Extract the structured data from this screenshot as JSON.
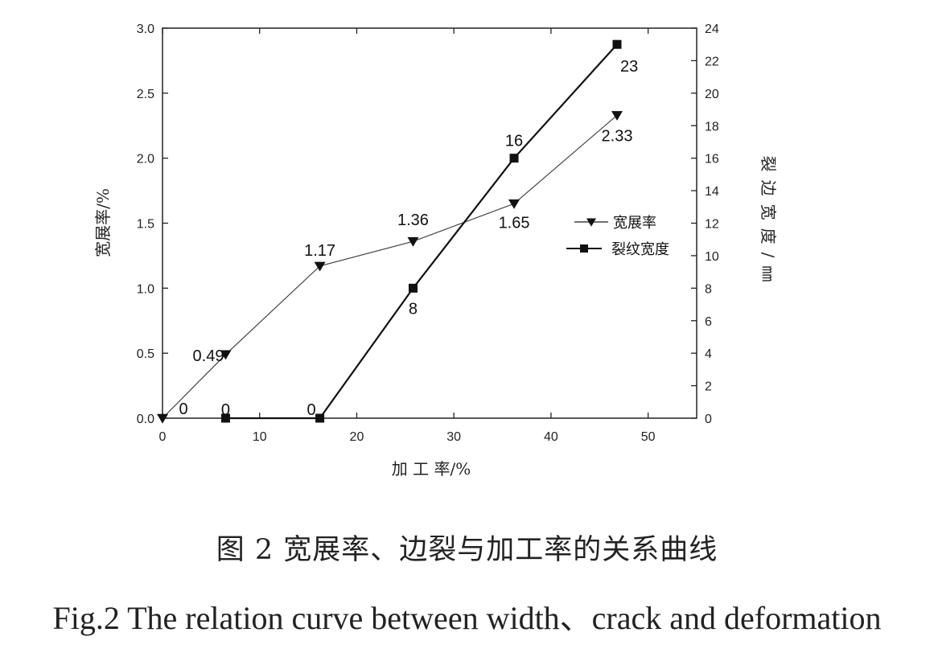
{
  "chart_data": {
    "type": "line",
    "x": [
      0,
      6.5,
      16.2,
      25.8,
      36.2,
      46.8
    ],
    "xlabel": "加 工 率/%",
    "xlim": [
      0,
      55
    ],
    "xticks": [
      0,
      10,
      20,
      30,
      40,
      50
    ],
    "y_left": {
      "label": "宽展率/%",
      "lim": [
        0,
        3.0
      ],
      "ticks": [
        "0.0",
        "0.5",
        "1.0",
        "1.5",
        "2.0",
        "2.5",
        "3.0"
      ]
    },
    "y_right": {
      "label": "裂边宽度/㎜",
      "lim": [
        0,
        24
      ],
      "ticks": [
        0,
        2,
        4,
        6,
        8,
        10,
        12,
        14,
        16,
        18,
        20,
        22,
        24
      ]
    },
    "series": [
      {
        "name": "宽展率",
        "axis": "left",
        "marker": "triangle-down",
        "x": [
          0,
          6.5,
          16.2,
          25.8,
          36.2,
          46.8
        ],
        "values": [
          0,
          0.49,
          1.17,
          1.36,
          1.65,
          2.33
        ],
        "labels": [
          "0",
          "0.49",
          "1.17",
          "1.36",
          "1.65",
          "2.33"
        ]
      },
      {
        "name": "裂纹宽度",
        "axis": "right",
        "marker": "square",
        "x": [
          6.5,
          16.2,
          25.8,
          36.2,
          46.8
        ],
        "values": [
          0,
          0,
          8,
          16,
          23
        ],
        "labels": [
          "0",
          "0",
          "8",
          "16",
          "23"
        ]
      }
    ],
    "legend_position": "center-right",
    "grid": false
  },
  "caption": {
    "cn": "图 2  宽展率、边裂与加工率的关系曲线",
    "en": "Fig.2 The relation curve between width、crack and deformation"
  }
}
